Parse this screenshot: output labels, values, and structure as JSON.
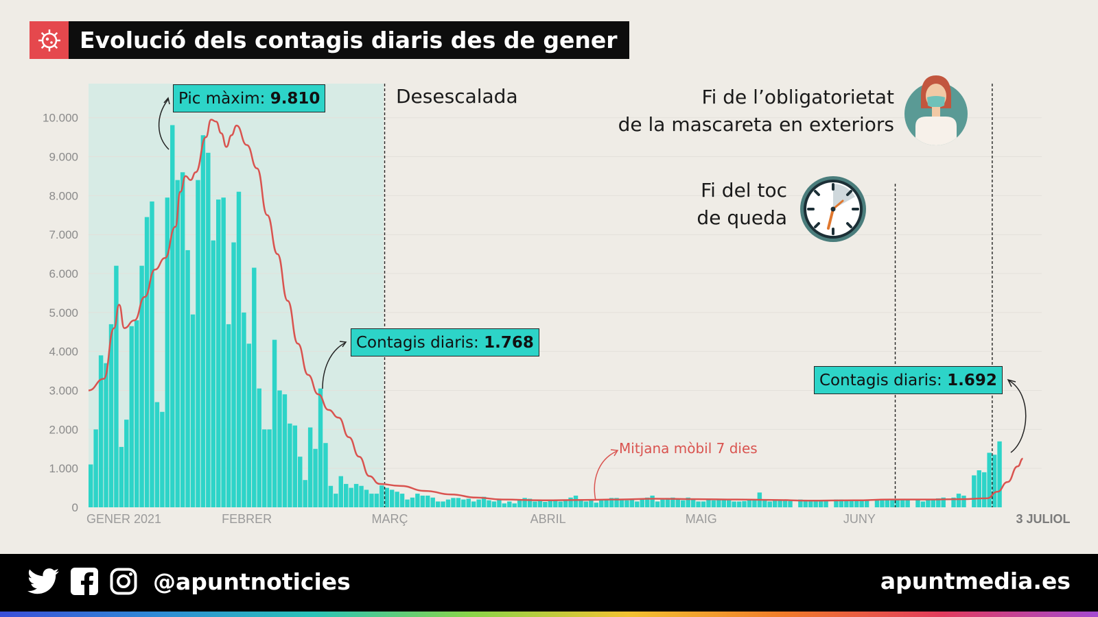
{
  "title": "Evolució dels contagis diaris des de gener",
  "title_icon": "virus-icon",
  "colors": {
    "bar": "#2dd4c8",
    "moving_average": "#d9534f",
    "title_icon_bg": "#e5484d",
    "shaded_period": "#d7ebe5",
    "background": "#efece6"
  },
  "annotations": {
    "peak_label": "Pic màxim: ",
    "peak_value": "9.810",
    "feb_label": "Contagis diaris: ",
    "feb_value": "1.768",
    "last_label": "Contagis diaris: ",
    "last_value": "1.692",
    "desescalada": "Desescalada",
    "curfew_line1": "Fi del toc",
    "curfew_line2": "de queda",
    "mask_line1": "Fi de l’obligatorietat",
    "mask_line2": "de la mascareta en exteriors",
    "moving_avg_label": "Mitjana mòbil 7 dies"
  },
  "footer": {
    "handle": "@apuntnoticies",
    "site": "apuntmedia.es",
    "icons": [
      "twitter-icon",
      "facebook-icon",
      "instagram-icon"
    ]
  },
  "chart_data": {
    "type": "bar",
    "title": "Evolució dels contagis diaris des de gener",
    "ylim": [
      0,
      10500
    ],
    "y_ticks": [
      0,
      1000,
      2000,
      3000,
      4000,
      5000,
      6000,
      7000,
      8000,
      9000,
      10000
    ],
    "y_tick_labels": [
      "0",
      "1.000",
      "2.000",
      "3.000",
      "4.000",
      "5.000",
      "6.000",
      "7.000",
      "8.000",
      "9.000",
      "10.000"
    ],
    "grid": true,
    "x_tick_labels": [
      {
        "label": "GENER 2021",
        "date": "2021-01-01"
      },
      {
        "label": "FEBRER",
        "date": "2021-02-01"
      },
      {
        "label": "MARÇ",
        "date": "2021-03-01"
      },
      {
        "label": "ABRIL",
        "date": "2021-04-01"
      },
      {
        "label": "MAIG",
        "date": "2021-05-01"
      },
      {
        "label": "JUNY",
        "date": "2021-06-01"
      },
      {
        "label": "3 JULIOL",
        "date": "2021-07-03"
      }
    ],
    "shaded_period": [
      "2021-01-01",
      "2021-02-28"
    ],
    "event_lines": [
      {
        "date": "2021-02-28",
        "label": "Desescalada"
      },
      {
        "date": "2021-06-08",
        "label": "Fi del toc de queda"
      },
      {
        "date": "2021-06-27",
        "label": "Fi de l’obligatorietat de la mascareta en exteriors"
      }
    ],
    "start_date": "2021-01-01",
    "series": [
      {
        "type": "bar",
        "values": [
          1100,
          2000,
          3900,
          3700,
          4700,
          6200,
          1550,
          2250,
          4650,
          4800,
          6200,
          7450,
          7850,
          2700,
          2450,
          7950,
          9810,
          8400,
          8600,
          6600,
          4950,
          8400,
          9550,
          9100,
          6850,
          7900,
          7950,
          4700,
          6800,
          8100,
          5000,
          4200,
          6150,
          3050,
          2000,
          2000,
          4300,
          3000,
          2900,
          2150,
          2100,
          1300,
          700,
          2050,
          1500,
          3050,
          1650,
          550,
          350,
          800,
          600,
          500,
          600,
          550,
          450,
          350,
          350,
          560,
          500,
          450,
          400,
          350,
          200,
          250,
          350,
          300,
          300,
          250,
          150,
          150,
          200,
          240,
          240,
          200,
          220,
          150,
          200,
          270,
          180,
          150,
          200,
          100,
          150,
          100,
          200,
          240,
          220,
          150,
          200,
          140,
          200,
          180,
          150,
          180,
          250,
          300,
          200,
          150,
          200,
          120,
          180,
          200,
          240,
          240,
          220,
          180,
          200,
          150,
          200,
          250,
          300,
          150,
          200,
          240,
          250,
          200,
          180,
          250,
          200,
          150,
          150,
          200,
          180,
          200,
          200,
          180,
          150,
          150,
          160,
          200,
          200,
          380,
          200,
          150,
          200,
          180,
          170,
          160,
          0,
          200,
          180,
          180,
          180,
          180,
          180,
          0,
          200,
          200,
          180,
          180,
          180,
          180,
          200,
          0,
          200,
          200,
          200,
          200,
          200,
          200,
          200,
          0,
          200,
          150,
          200,
          200,
          230,
          250,
          0,
          250,
          350,
          300,
          0,
          820,
          950,
          900,
          1400,
          1350,
          1692
        ]
      },
      {
        "type": "line",
        "name": "Mitjana mòbil 7 dies",
        "points": [
          [
            "2021-01-01",
            3000
          ],
          [
            "2021-01-04",
            3300
          ],
          [
            "2021-01-06",
            4600
          ],
          [
            "2021-01-07",
            5200
          ],
          [
            "2021-01-08",
            4600
          ],
          [
            "2021-01-10",
            4800
          ],
          [
            "2021-01-12",
            5400
          ],
          [
            "2021-01-14",
            6100
          ],
          [
            "2021-01-16",
            6400
          ],
          [
            "2021-01-18",
            7200
          ],
          [
            "2021-01-19",
            8100
          ],
          [
            "2021-01-20",
            8500
          ],
          [
            "2021-01-21",
            8400
          ],
          [
            "2021-01-22",
            8600
          ],
          [
            "2021-01-24",
            9500
          ],
          [
            "2021-01-25",
            9950
          ],
          [
            "2021-01-26",
            9900
          ],
          [
            "2021-01-27",
            9600
          ],
          [
            "2021-01-28",
            9250
          ],
          [
            "2021-01-29",
            9550
          ],
          [
            "2021-01-30",
            9800
          ],
          [
            "2021-02-01",
            9300
          ],
          [
            "2021-02-03",
            8700
          ],
          [
            "2021-02-05",
            7500
          ],
          [
            "2021-02-07",
            6500
          ],
          [
            "2021-02-09",
            5300
          ],
          [
            "2021-02-11",
            4200
          ],
          [
            "2021-02-13",
            3400
          ],
          [
            "2021-02-15",
            2900
          ],
          [
            "2021-02-17",
            2500
          ],
          [
            "2021-02-19",
            2300
          ],
          [
            "2021-02-21",
            1800
          ],
          [
            "2021-02-23",
            1300
          ],
          [
            "2021-02-25",
            800
          ],
          [
            "2021-02-27",
            600
          ],
          [
            "2021-03-03",
            550
          ],
          [
            "2021-03-08",
            420
          ],
          [
            "2021-03-13",
            330
          ],
          [
            "2021-03-18",
            250
          ],
          [
            "2021-03-23",
            200
          ],
          [
            "2021-03-31",
            180
          ],
          [
            "2021-04-08",
            190
          ],
          [
            "2021-04-15",
            200
          ],
          [
            "2021-04-22",
            220
          ],
          [
            "2021-04-30",
            210
          ],
          [
            "2021-05-08",
            200
          ],
          [
            "2021-05-15",
            190
          ],
          [
            "2021-05-22",
            170
          ],
          [
            "2021-05-31",
            180
          ],
          [
            "2021-06-07",
            200
          ],
          [
            "2021-06-14",
            200
          ],
          [
            "2021-06-21",
            210
          ],
          [
            "2021-06-26",
            230
          ],
          [
            "2021-06-28",
            400
          ],
          [
            "2021-06-30",
            650
          ],
          [
            "2021-07-02",
            1050
          ],
          [
            "2021-07-03",
            1250
          ]
        ]
      }
    ]
  }
}
